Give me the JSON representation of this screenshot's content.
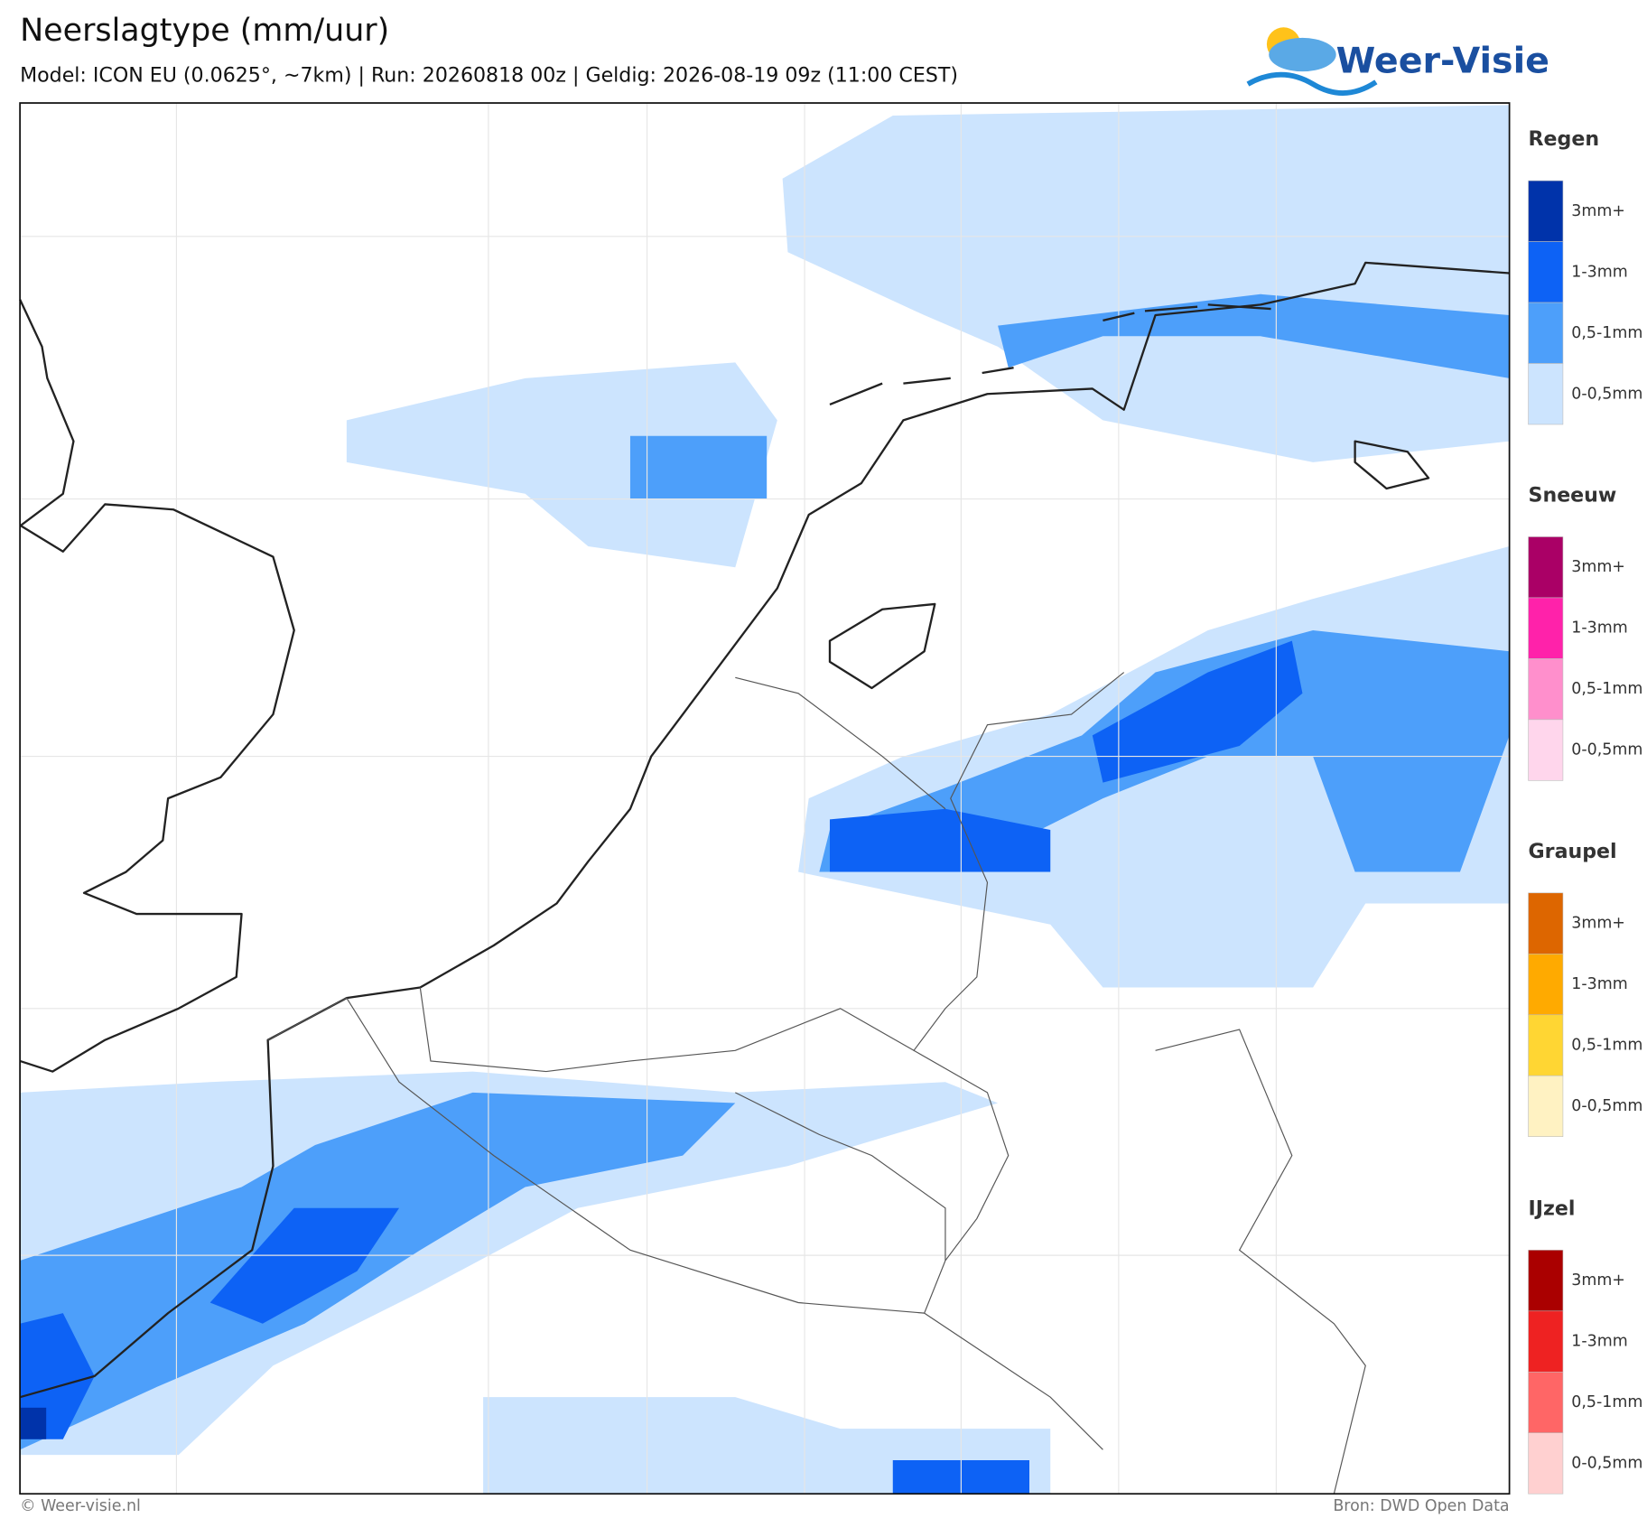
{
  "header": {
    "title": "Neerslagtype (mm/uur)",
    "subtitle": "Model: ICON EU (0.0625°, ~7km)  |  Run: 20260818 00z  |  Geldig: 2026-08-19 09z (11:00 CEST)"
  },
  "logo": {
    "text": "Weer-Visie"
  },
  "legend": [
    {
      "title": "Regen",
      "items": [
        {
          "label": "3mm+",
          "color": "#0033aa"
        },
        {
          "label": "1-3mm",
          "color": "#0d62f5"
        },
        {
          "label": "0,5-1mm",
          "color": "#4d9ffa"
        },
        {
          "label": "0-0,5mm",
          "color": "#cce4fe"
        }
      ]
    },
    {
      "title": "Sneeuw",
      "items": [
        {
          "label": "3mm+",
          "color": "#aa0066"
        },
        {
          "label": "1-3mm",
          "color": "#ff22aa"
        },
        {
          "label": "0,5-1mm",
          "color": "#ff8fcc"
        },
        {
          "label": "0-0,5mm",
          "color": "#ffd6ec"
        }
      ]
    },
    {
      "title": "Graupel",
      "items": [
        {
          "label": "3mm+",
          "color": "#dd6600"
        },
        {
          "label": "1-3mm",
          "color": "#ffaa00"
        },
        {
          "label": "0,5-1mm",
          "color": "#ffd633"
        },
        {
          "label": "0-0,5mm",
          "color": "#fff2c2"
        }
      ]
    },
    {
      "title": "IJzel",
      "items": [
        {
          "label": "3mm+",
          "color": "#aa0000"
        },
        {
          "label": "1-3mm",
          "color": "#ee2222"
        },
        {
          "label": "0,5-1mm",
          "color": "#ff6666"
        },
        {
          "label": "0-0,5mm",
          "color": "#ffd0d0"
        }
      ]
    }
  ],
  "footer": {
    "left": "© Weer-visie.nl",
    "right": "Bron: DWD Open Data"
  }
}
